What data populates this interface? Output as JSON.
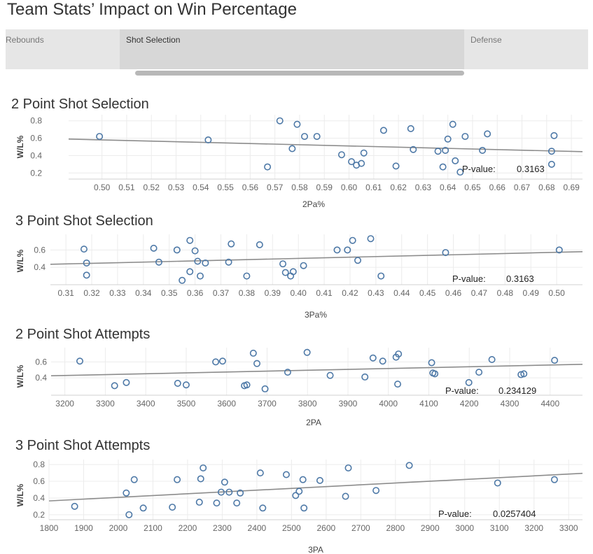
{
  "page": {
    "title": "Team Stats’ Impact on Win Percentage"
  },
  "tabs": [
    {
      "label": "Rebounds",
      "active": false
    },
    {
      "label": "Shot Selection",
      "active": true
    },
    {
      "label": "Defense",
      "active": false
    }
  ],
  "colors": {
    "marker": "#4e79a7",
    "trend": "#8c8c8c",
    "grid": "#ececec"
  },
  "chart_data": [
    {
      "type": "scatter",
      "title": "2 Point Shot Selection",
      "xlabel": "2Pa%",
      "ylabel": "W/L%",
      "xticks": [
        0.5,
        0.51,
        0.52,
        0.53,
        0.54,
        0.55,
        0.56,
        0.57,
        0.58,
        0.59,
        0.6,
        0.61,
        0.62,
        0.63,
        0.64,
        0.65,
        0.66,
        0.67,
        0.68,
        0.69
      ],
      "xtick_labels": [
        "0.50",
        "0.51",
        "0.52",
        "0.53",
        "0.54",
        "0.55",
        "0.56",
        "0.57",
        "0.58",
        "0.59",
        "0.60",
        "0.61",
        "0.62",
        "0.63",
        "0.64",
        "0.65",
        "0.66",
        "0.67",
        "0.68",
        "0.69"
      ],
      "yticks": [
        0.2,
        0.4,
        0.6,
        0.8
      ],
      "ytick_labels": [
        "0.2",
        "0.4",
        "0.6",
        "0.8"
      ],
      "xlim": [
        0.4865,
        0.6945
      ],
      "ylim": [
        0.13,
        0.87
      ],
      "trend": {
        "x": [
          0.4865,
          0.6945
        ],
        "y": [
          0.59,
          0.445
        ]
      },
      "pvalue_label": "P-value:",
      "pvalue": "0.3163",
      "points": [
        [
          0.499,
          0.62
        ],
        [
          0.543,
          0.58
        ],
        [
          0.567,
          0.27
        ],
        [
          0.572,
          0.8
        ],
        [
          0.577,
          0.48
        ],
        [
          0.579,
          0.76
        ],
        [
          0.582,
          0.62
        ],
        [
          0.587,
          0.62
        ],
        [
          0.597,
          0.41
        ],
        [
          0.601,
          0.33
        ],
        [
          0.603,
          0.29
        ],
        [
          0.605,
          0.31
        ],
        [
          0.606,
          0.43
        ],
        [
          0.614,
          0.69
        ],
        [
          0.619,
          0.28
        ],
        [
          0.625,
          0.71
        ],
        [
          0.626,
          0.47
        ],
        [
          0.636,
          0.45
        ],
        [
          0.638,
          0.27
        ],
        [
          0.639,
          0.46
        ],
        [
          0.64,
          0.59
        ],
        [
          0.642,
          0.76
        ],
        [
          0.643,
          0.34
        ],
        [
          0.645,
          0.21
        ],
        [
          0.647,
          0.62
        ],
        [
          0.654,
          0.46
        ],
        [
          0.656,
          0.65
        ],
        [
          0.682,
          0.3
        ],
        [
          0.682,
          0.45
        ],
        [
          0.683,
          0.63
        ]
      ]
    },
    {
      "type": "scatter",
      "title": "3 Point Shot Selection",
      "xlabel": "3Pa%",
      "ylabel": "W/L%",
      "xticks": [
        0.31,
        0.32,
        0.33,
        0.34,
        0.35,
        0.36,
        0.37,
        0.38,
        0.39,
        0.4,
        0.41,
        0.42,
        0.43,
        0.44,
        0.45,
        0.46,
        0.47,
        0.48,
        0.49,
        0.5
      ],
      "xtick_labels": [
        "0.31",
        "0.32",
        "0.33",
        "0.34",
        "0.35",
        "0.36",
        "0.37",
        "0.38",
        "0.39",
        "0.40",
        "0.41",
        "0.42",
        "0.43",
        "0.44",
        "0.45",
        "0.46",
        "0.47",
        "0.48",
        "0.49",
        "0.50"
      ],
      "yticks": [
        0.4,
        0.6
      ],
      "ytick_labels": [
        "0.4",
        "0.6"
      ],
      "xlim": [
        0.304,
        0.51
      ],
      "ylim": [
        0.2,
        0.78
      ],
      "trend": {
        "x": [
          0.304,
          0.51
        ],
        "y": [
          0.435,
          0.58
        ]
      },
      "pvalue_label": "P-value:",
      "pvalue": "0.3163",
      "points": [
        [
          0.317,
          0.61
        ],
        [
          0.318,
          0.45
        ],
        [
          0.318,
          0.31
        ],
        [
          0.344,
          0.62
        ],
        [
          0.346,
          0.46
        ],
        [
          0.353,
          0.6
        ],
        [
          0.355,
          0.25
        ],
        [
          0.358,
          0.35
        ],
        [
          0.358,
          0.71
        ],
        [
          0.36,
          0.59
        ],
        [
          0.361,
          0.47
        ],
        [
          0.362,
          0.3
        ],
        [
          0.364,
          0.45
        ],
        [
          0.373,
          0.46
        ],
        [
          0.374,
          0.67
        ],
        [
          0.38,
          0.3
        ],
        [
          0.385,
          0.66
        ],
        [
          0.394,
          0.44
        ],
        [
          0.395,
          0.34
        ],
        [
          0.397,
          0.3
        ],
        [
          0.398,
          0.35
        ],
        [
          0.402,
          0.42
        ],
        [
          0.415,
          0.6
        ],
        [
          0.419,
          0.6
        ],
        [
          0.421,
          0.71
        ],
        [
          0.423,
          0.48
        ],
        [
          0.428,
          0.73
        ],
        [
          0.432,
          0.3
        ],
        [
          0.457,
          0.57
        ],
        [
          0.501,
          0.6
        ]
      ]
    },
    {
      "type": "scatter",
      "title": "2 Point Shot Attempts",
      "xlabel": "2PA",
      "ylabel": "W/L%",
      "xticks": [
        3200,
        3300,
        3400,
        3500,
        3600,
        3700,
        3800,
        3900,
        4000,
        4100,
        4200,
        4300,
        4400
      ],
      "xtick_labels": [
        "3200",
        "3300",
        "3400",
        "3500",
        "3600",
        "3700",
        "3800",
        "3900",
        "4000",
        "4100",
        "4200",
        "4300",
        "4400"
      ],
      "yticks": [
        0.4,
        0.6
      ],
      "ytick_labels": [
        "0.4",
        "0.6"
      ],
      "xlim": [
        3166,
        4480
      ],
      "ylim": [
        0.18,
        0.78
      ],
      "trend": {
        "x": [
          3166,
          4480
        ],
        "y": [
          0.425,
          0.57
        ]
      },
      "pvalue_label": "P-value:",
      "pvalue": "0.234129",
      "points": [
        [
          3237,
          0.61
        ],
        [
          3323,
          0.3
        ],
        [
          3352,
          0.34
        ],
        [
          3479,
          0.33
        ],
        [
          3500,
          0.31
        ],
        [
          3573,
          0.6
        ],
        [
          3590,
          0.61
        ],
        [
          3644,
          0.3
        ],
        [
          3650,
          0.31
        ],
        [
          3666,
          0.71
        ],
        [
          3675,
          0.58
        ],
        [
          3695,
          0.26
        ],
        [
          3751,
          0.47
        ],
        [
          3799,
          0.72
        ],
        [
          3856,
          0.43
        ],
        [
          3942,
          0.41
        ],
        [
          3962,
          0.65
        ],
        [
          3986,
          0.61
        ],
        [
          4019,
          0.66
        ],
        [
          4023,
          0.32
        ],
        [
          4025,
          0.7
        ],
        [
          4107,
          0.59
        ],
        [
          4110,
          0.46
        ],
        [
          4115,
          0.45
        ],
        [
          4199,
          0.34
        ],
        [
          4224,
          0.47
        ],
        [
          4256,
          0.63
        ],
        [
          4328,
          0.44
        ],
        [
          4335,
          0.45
        ],
        [
          4411,
          0.62
        ]
      ]
    },
    {
      "type": "scatter",
      "title": "3 Point Shot Attempts",
      "xlabel": "3PA",
      "ylabel": "W/L%",
      "xticks": [
        1800,
        1900,
        2000,
        2100,
        2200,
        2300,
        2400,
        2500,
        2600,
        2700,
        2800,
        2900,
        3000,
        3100,
        3200,
        3300
      ],
      "xtick_labels": [
        "1800",
        "1900",
        "2000",
        "2100",
        "2200",
        "2300",
        "2400",
        "2500",
        "2600",
        "2700",
        "2800",
        "2900",
        "3000",
        "3100",
        "3200",
        "3300"
      ],
      "yticks": [
        0.2,
        0.4,
        0.6,
        0.8
      ],
      "ytick_labels": [
        "0.2",
        "0.4",
        "0.6",
        "0.8"
      ],
      "xlim": [
        1800,
        3340
      ],
      "ylim": [
        0.14,
        0.86
      ],
      "trend": {
        "x": [
          1800,
          3340
        ],
        "y": [
          0.365,
          0.695
        ]
      },
      "pvalue_label": "P-value:",
      "pvalue": "0.0257404",
      "points": [
        [
          1874,
          0.3
        ],
        [
          2023,
          0.46
        ],
        [
          2031,
          0.2
        ],
        [
          2046,
          0.62
        ],
        [
          2072,
          0.28
        ],
        [
          2156,
          0.29
        ],
        [
          2170,
          0.62
        ],
        [
          2238,
          0.63
        ],
        [
          2245,
          0.76
        ],
        [
          2234,
          0.35
        ],
        [
          2284,
          0.34
        ],
        [
          2297,
          0.47
        ],
        [
          2307,
          0.59
        ],
        [
          2320,
          0.47
        ],
        [
          2342,
          0.34
        ],
        [
          2352,
          0.46
        ],
        [
          2410,
          0.7
        ],
        [
          2417,
          0.28
        ],
        [
          2485,
          0.68
        ],
        [
          2512,
          0.43
        ],
        [
          2522,
          0.48
        ],
        [
          2533,
          0.62
        ],
        [
          2536,
          0.28
        ],
        [
          2582,
          0.61
        ],
        [
          2656,
          0.42
        ],
        [
          2664,
          0.76
        ],
        [
          2744,
          0.49
        ],
        [
          2840,
          0.79
        ],
        [
          3095,
          0.58
        ],
        [
          3259,
          0.62
        ]
      ]
    }
  ]
}
